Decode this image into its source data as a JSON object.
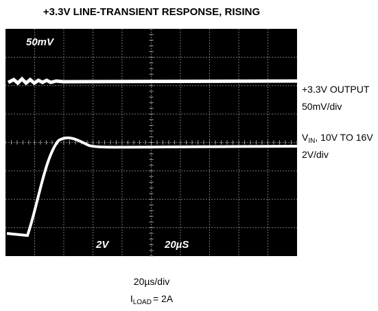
{
  "title": "+3.3V LINE-TRANSIENT RESPONSE, RISING",
  "screen": {
    "amplitude_label": "50mV",
    "channel_label": "2V",
    "time_label": "20µS"
  },
  "output_trace": {
    "name": "+3.3V OUTPUT",
    "scale": "50mV/div"
  },
  "input_trace": {
    "symbol": "V",
    "subscript": "IN",
    "range": ", 10V TO 16V",
    "scale": "2V/div"
  },
  "footer": {
    "timebase": "20µs/div",
    "load_symbol": "I",
    "load_subscript": "LOAD",
    "load_value": "= 2A"
  }
}
